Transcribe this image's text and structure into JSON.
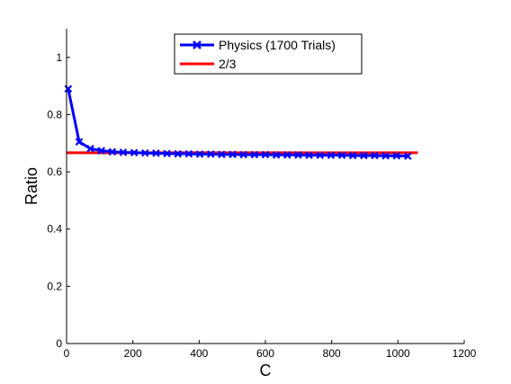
{
  "chart_data": {
    "type": "line",
    "xlabel": "C",
    "ylabel": "Ratio",
    "xlim": [
      0,
      1200
    ],
    "ylim": [
      0,
      1.1
    ],
    "xticks": [
      0,
      200,
      400,
      600,
      800,
      1000,
      1200
    ],
    "yticks": [
      0,
      0.2,
      0.4,
      0.6,
      0.8,
      1
    ],
    "xtick_labels": [
      "0",
      "200",
      "400",
      "600",
      "800",
      "1000",
      "1200"
    ],
    "ytick_labels": [
      "0",
      "0.2",
      "0.4",
      "0.6",
      "0.8",
      "1"
    ],
    "grid": false,
    "legend_position": "top-center",
    "series": [
      {
        "name": "Physics (1700 Trials)",
        "color": "#0000ff",
        "marker": "x",
        "x": [
          5,
          38,
          72,
          105,
          138,
          171,
          204,
          237,
          270,
          303,
          336,
          369,
          402,
          435,
          468,
          501,
          534,
          567,
          600,
          633,
          666,
          699,
          732,
          765,
          798,
          831,
          864,
          897,
          930,
          963,
          996,
          1030
        ],
        "y": [
          0.89,
          0.705,
          0.681,
          0.674,
          0.67,
          0.668,
          0.667,
          0.666,
          0.665,
          0.664,
          0.663,
          0.663,
          0.662,
          0.662,
          0.661,
          0.661,
          0.66,
          0.66,
          0.66,
          0.659,
          0.659,
          0.659,
          0.658,
          0.658,
          0.658,
          0.658,
          0.657,
          0.657,
          0.657,
          0.656,
          0.656,
          0.655
        ]
      },
      {
        "name": "2/3",
        "color": "#ff0000",
        "marker": "none",
        "x": [
          0,
          1060
        ],
        "y": [
          0.6667,
          0.6667
        ]
      }
    ]
  }
}
